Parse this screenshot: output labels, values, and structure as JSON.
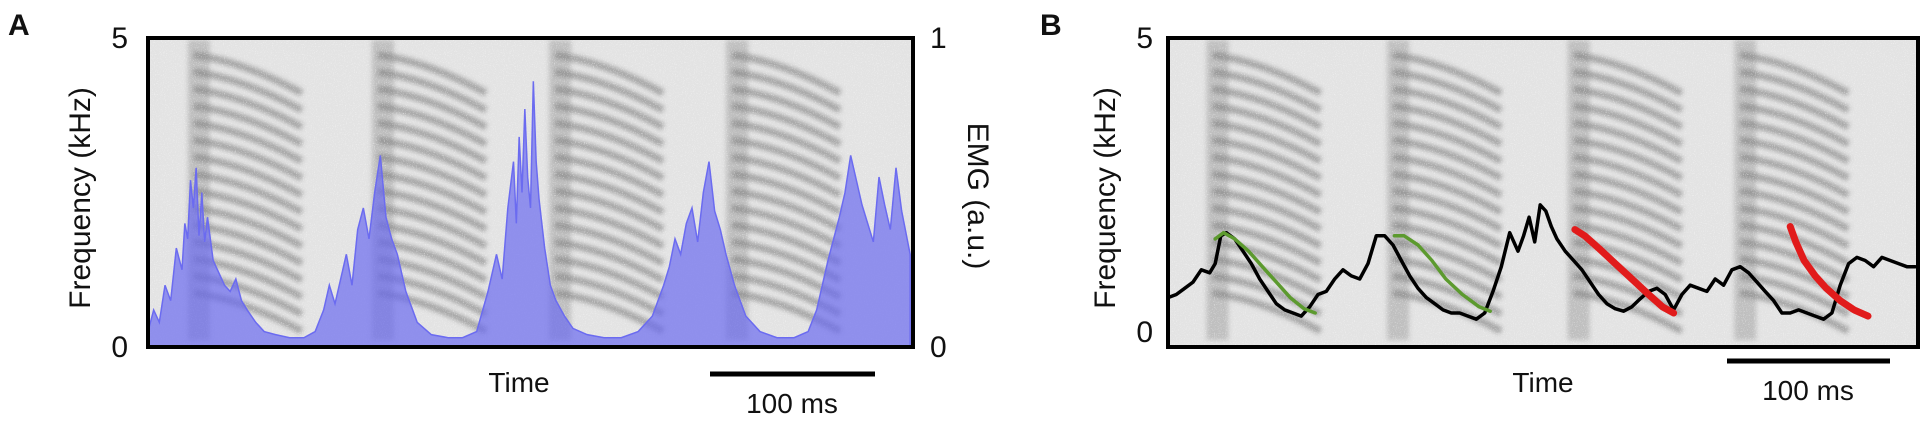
{
  "panels": [
    {
      "letter": "A",
      "y_label": "Frequency (kHz)",
      "y_ticks": [
        "0",
        "5"
      ],
      "y2_label": "EMG (a.u.)",
      "y2_ticks": [
        "0",
        "1"
      ],
      "x_label": "Time",
      "scale_bar": "100 ms"
    },
    {
      "letter": "B",
      "y_label": "Frequency (kHz)",
      "y_ticks": [
        "0",
        "5"
      ],
      "x_label": "Time",
      "scale_bar": "100 ms"
    }
  ],
  "chart_data": [
    {
      "type": "area",
      "panel": "A",
      "background": "spectrogram",
      "xlabel": "Time",
      "ylabel": "Frequency (kHz)",
      "ylim": [
        0,
        5
      ],
      "y2label": "EMG (a.u.)",
      "y2lim": [
        0,
        1
      ],
      "scale_bar_ms": 100,
      "spectrogram_syllable_time_ms": [
        45,
        175,
        300,
        425
      ],
      "series": [
        {
          "color": "#6b6bf0",
          "axis": "right",
          "x_ms": [
            0,
            4,
            8,
            12,
            16,
            20,
            24,
            26,
            28,
            30,
            32,
            34,
            36,
            38,
            40,
            42,
            46,
            50,
            54,
            58,
            62,
            66,
            70,
            76,
            82,
            90,
            100,
            110,
            118,
            124,
            128,
            132,
            136,
            140,
            144,
            148,
            152,
            156,
            160,
            164,
            168,
            172,
            176,
            182,
            190,
            200,
            212,
            222,
            232,
            240,
            246,
            250,
            254,
            258,
            260,
            262,
            264,
            266,
            268,
            270,
            272,
            274,
            276,
            278,
            280,
            282,
            284,
            288,
            294,
            300,
            310,
            322,
            334,
            346,
            356,
            364,
            368,
            372,
            376,
            380,
            384,
            388,
            392,
            396,
            400,
            404,
            408,
            414,
            422,
            432,
            444,
            456,
            466,
            472,
            476,
            480,
            484,
            488,
            492,
            496,
            500,
            504,
            508,
            512,
            516,
            520,
            524,
            528,
            532,
            538
          ],
          "values": [
            0.05,
            0.12,
            0.08,
            0.2,
            0.15,
            0.32,
            0.25,
            0.4,
            0.35,
            0.54,
            0.45,
            0.58,
            0.36,
            0.5,
            0.34,
            0.42,
            0.28,
            0.24,
            0.2,
            0.18,
            0.22,
            0.15,
            0.12,
            0.08,
            0.05,
            0.04,
            0.03,
            0.03,
            0.05,
            0.12,
            0.2,
            0.14,
            0.22,
            0.3,
            0.2,
            0.38,
            0.45,
            0.35,
            0.5,
            0.62,
            0.42,
            0.35,
            0.3,
            0.18,
            0.08,
            0.04,
            0.03,
            0.03,
            0.05,
            0.18,
            0.3,
            0.22,
            0.45,
            0.6,
            0.4,
            0.68,
            0.5,
            0.77,
            0.55,
            0.45,
            0.86,
            0.6,
            0.48,
            0.4,
            0.32,
            0.26,
            0.2,
            0.15,
            0.1,
            0.06,
            0.04,
            0.03,
            0.03,
            0.05,
            0.1,
            0.2,
            0.26,
            0.35,
            0.3,
            0.4,
            0.45,
            0.34,
            0.5,
            0.6,
            0.44,
            0.38,
            0.3,
            0.2,
            0.1,
            0.05,
            0.03,
            0.03,
            0.05,
            0.12,
            0.2,
            0.28,
            0.35,
            0.42,
            0.5,
            0.62,
            0.54,
            0.46,
            0.4,
            0.34,
            0.55,
            0.46,
            0.38,
            0.58,
            0.44,
            0.3
          ]
        }
      ]
    },
    {
      "type": "line",
      "panel": "B",
      "background": "spectrogram",
      "xlabel": "Time",
      "ylabel": "Frequency (kHz)",
      "ylim": [
        0,
        5
      ],
      "scale_bar_ms": 100,
      "spectrogram_syllable_time_ms": [
        45,
        175,
        305,
        425
      ],
      "series": [
        {
          "color": "#000000",
          "x_ms": [
            0,
            6,
            12,
            18,
            24,
            30,
            34,
            38,
            42,
            48,
            54,
            60,
            66,
            72,
            78,
            84,
            90,
            96,
            102,
            108,
            114,
            120,
            126,
            132,
            138,
            144,
            150,
            156,
            162,
            168,
            174,
            180,
            186,
            192,
            198,
            204,
            210,
            216,
            222,
            228,
            234,
            240,
            246,
            252,
            256,
            260,
            264,
            268,
            272,
            276,
            280,
            286,
            292,
            298,
            304,
            310,
            316,
            322,
            328,
            334,
            340,
            346,
            352,
            358,
            364,
            370,
            376,
            382,
            388,
            394,
            400,
            406,
            412,
            418,
            424,
            430,
            436,
            442,
            448,
            454,
            460,
            466,
            472,
            478,
            484,
            490,
            496,
            502,
            508,
            514,
            520,
            526,
            532,
            538
          ],
          "values": [
            0.8,
            0.85,
            0.95,
            1.05,
            1.25,
            1.2,
            1.35,
            1.8,
            1.85,
            1.75,
            1.55,
            1.35,
            1.1,
            0.9,
            0.7,
            0.6,
            0.55,
            0.5,
            0.65,
            0.85,
            0.9,
            1.1,
            1.25,
            1.15,
            1.1,
            1.35,
            1.8,
            1.8,
            1.65,
            1.4,
            1.15,
            0.95,
            0.8,
            0.7,
            0.6,
            0.55,
            0.55,
            0.5,
            0.45,
            0.55,
            0.9,
            1.3,
            1.85,
            1.55,
            1.8,
            2.1,
            1.7,
            2.3,
            2.2,
            1.95,
            1.75,
            1.55,
            1.4,
            1.25,
            1.05,
            0.85,
            0.7,
            0.62,
            0.58,
            0.65,
            0.78,
            0.9,
            0.95,
            0.85,
            0.6,
            0.85,
            1.0,
            0.95,
            0.9,
            1.1,
            1.0,
            1.25,
            1.3,
            1.2,
            1.05,
            0.9,
            0.75,
            0.55,
            0.55,
            0.6,
            0.55,
            0.5,
            0.45,
            0.55,
            1.0,
            1.35,
            1.45,
            1.4,
            1.3,
            1.45,
            1.4,
            1.35,
            1.3,
            1.3
          ]
        },
        {
          "color": "#5c9a2e",
          "x_ms": [
            34,
            40,
            48,
            58,
            68,
            78,
            88,
            98,
            106
          ],
          "values": [
            1.75,
            1.85,
            1.75,
            1.55,
            1.3,
            1.05,
            0.8,
            0.62,
            0.55
          ]
        },
        {
          "color": "#5c9a2e",
          "x_ms": [
            163,
            170,
            180,
            190,
            200,
            212,
            224,
            232
          ],
          "values": [
            1.8,
            1.8,
            1.65,
            1.4,
            1.1,
            0.85,
            0.65,
            0.58
          ]
        },
        {
          "color": "#e11b1b",
          "x_ms": [
            293,
            300,
            310,
            322,
            334,
            346,
            356,
            364
          ],
          "values": [
            1.9,
            1.8,
            1.6,
            1.35,
            1.1,
            0.85,
            0.65,
            0.55
          ]
        },
        {
          "color": "#e11b1b",
          "x_ms": [
            448,
            452,
            458,
            466,
            474,
            484,
            494,
            504
          ],
          "values": [
            1.95,
            1.7,
            1.4,
            1.15,
            0.95,
            0.75,
            0.6,
            0.5
          ]
        }
      ]
    }
  ]
}
